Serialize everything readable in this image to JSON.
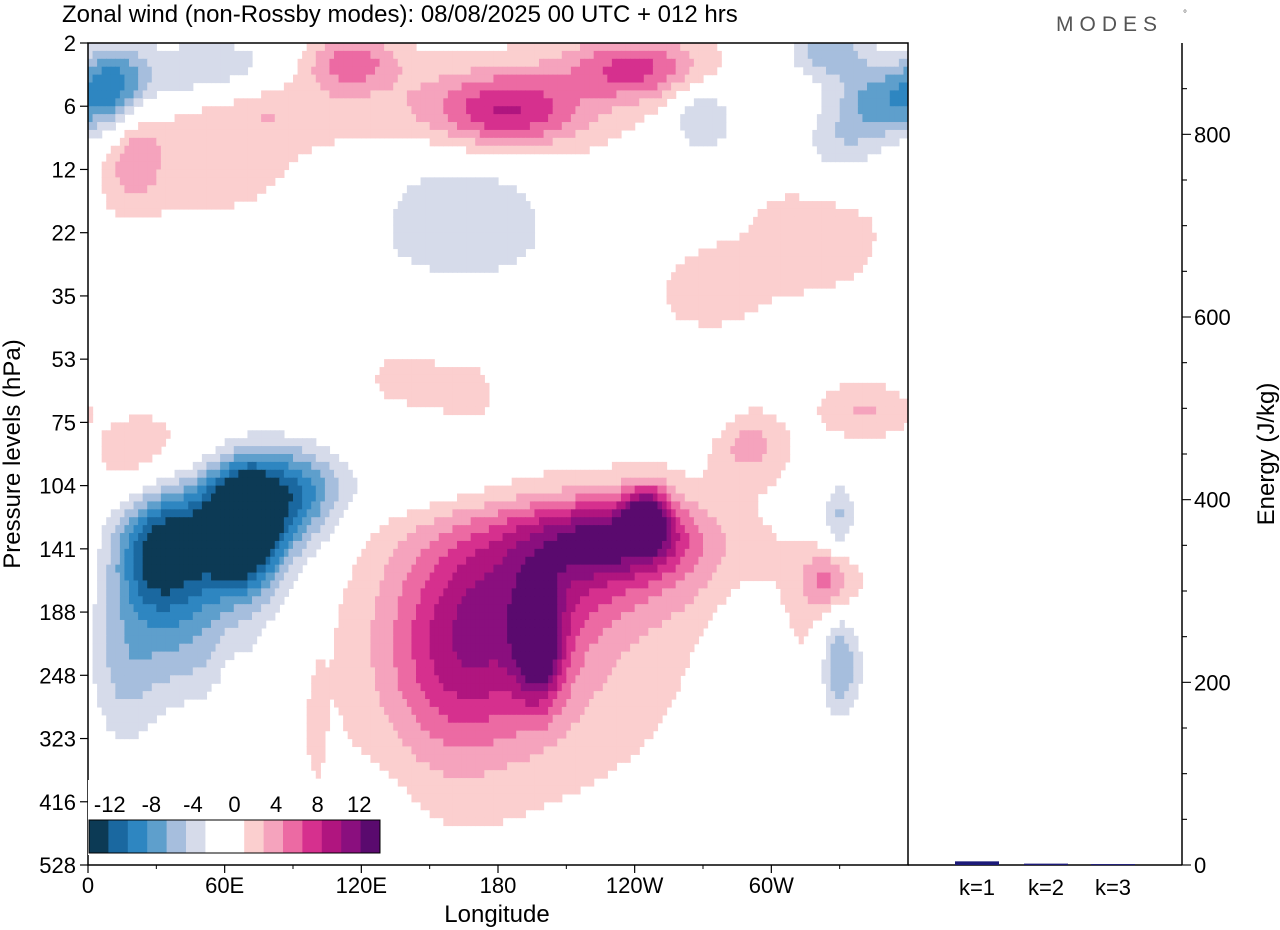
{
  "chart_data": [
    {
      "type": "heatmap",
      "title": "Zonal wind (non-Rossby modes):  08/08/2025  00 UTC  + 012 hrs",
      "brand": "MODES",
      "brand_mark": "°",
      "xlabel": "Longitude",
      "ylabel": "Pressure levels (hPa)",
      "x_ticks": [
        {
          "lon": 0,
          "label": "0"
        },
        {
          "lon": 60,
          "label": "60E"
        },
        {
          "lon": 120,
          "label": "120E"
        },
        {
          "lon": 180,
          "label": "180"
        },
        {
          "lon": 240,
          "label": "120W"
        },
        {
          "lon": 300,
          "label": "60W"
        }
      ],
      "xlim": [
        0,
        360
      ],
      "y_levels": [
        "2",
        "6",
        "12",
        "22",
        "35",
        "53",
        "75",
        "104",
        "141",
        "188",
        "248",
        "323",
        "416",
        "528"
      ],
      "colorbar": {
        "labels": [
          "-12",
          "-8",
          "-4",
          "0",
          "4",
          "8",
          "12"
        ],
        "label_values": [
          -12,
          -8,
          -4,
          0,
          4,
          8,
          12
        ],
        "bounds": [
          -14,
          14
        ],
        "colors": [
          "#0c3a55",
          "#1a68a0",
          "#2e86c1",
          "#5e9fcc",
          "#a6bedd",
          "#d6dbea",
          "#ffffff",
          "#ffffff",
          "#fbcfcf",
          "#f5a3bd",
          "#ec6aa3",
          "#d6308e",
          "#b0157f",
          "#8a0f7e",
          "#5a0a6e"
        ]
      },
      "features": [
        {
          "lon": 68,
          "lev": 7.6,
          "value": -13,
          "rx": 15,
          "ry": 0.9
        },
        {
          "lon": 55,
          "lev": 7.7,
          "value": -10,
          "rx": 35,
          "ry": 1.2
        },
        {
          "lon": 30,
          "lev": 8.1,
          "value": -8,
          "rx": 18,
          "ry": 1.0
        },
        {
          "lon": 90,
          "lev": 7.1,
          "value": -7,
          "rx": 22,
          "ry": 0.8
        },
        {
          "lon": 40,
          "lev": 9.5,
          "value": -5,
          "rx": 35,
          "ry": 1.2
        },
        {
          "lon": 15,
          "lev": 10.2,
          "value": -3,
          "rx": 15,
          "ry": 1.5
        },
        {
          "lon": 150,
          "lev": 7.0,
          "value": -2,
          "rx": 70,
          "ry": 0.5
        },
        {
          "lon": 165,
          "lev": 2.5,
          "value": -4,
          "rx": 40,
          "ry": 0.9
        },
        {
          "lon": 165,
          "lev": 3.5,
          "value": -2,
          "rx": 90,
          "ry": 0.8
        },
        {
          "lon": 12,
          "lev": 0.7,
          "value": -7,
          "rx": 14,
          "ry": 0.7
        },
        {
          "lon": 55,
          "lev": 0.5,
          "value": -6,
          "rx": 40,
          "ry": 0.6
        },
        {
          "lon": 325,
          "lev": 0.1,
          "value": -6,
          "rx": 18,
          "ry": 0.5
        },
        {
          "lon": 350,
          "lev": 0.9,
          "value": -7,
          "rx": 20,
          "ry": 0.6
        },
        {
          "lon": 270,
          "lev": 1.2,
          "value": -5,
          "rx": 15,
          "ry": 0.6
        },
        {
          "lon": 330,
          "lev": 1.6,
          "value": -4,
          "rx": 20,
          "ry": 0.7
        },
        {
          "lon": 330,
          "lev": 9.8,
          "value": -8,
          "rx": 10,
          "ry": 0.9
        },
        {
          "lon": 330,
          "lev": 7.5,
          "value": -5,
          "rx": 8,
          "ry": 0.6
        },
        {
          "lon": 285,
          "lev": 10.8,
          "value": -3,
          "rx": 14,
          "ry": 2.0
        },
        {
          "lon": 130,
          "lev": 13.3,
          "value": -2,
          "rx": 15,
          "ry": 1.4
        },
        {
          "lon": 268,
          "lev": 5.8,
          "value": -2,
          "rx": 30,
          "ry": 0.5
        },
        {
          "lon": 18,
          "lev": 3.7,
          "value": -2,
          "rx": 10,
          "ry": 0.6
        },
        {
          "lon": 198,
          "lev": 9.5,
          "value": 10,
          "rx": 10,
          "ry": 0.9
        },
        {
          "lon": 245,
          "lev": 7.5,
          "value": 10,
          "rx": 10,
          "ry": 0.5
        },
        {
          "lon": 230,
          "lev": 7.8,
          "value": 8,
          "rx": 35,
          "ry": 0.6
        },
        {
          "lon": 180,
          "lev": 9.2,
          "value": 6,
          "rx": 40,
          "ry": 1.6
        },
        {
          "lon": 220,
          "lev": 8.2,
          "value": 5,
          "rx": 60,
          "ry": 1.0
        },
        {
          "lon": 160,
          "lev": 10.0,
          "value": 4,
          "rx": 30,
          "ry": 1.6
        },
        {
          "lon": 190,
          "lev": 9.5,
          "value": 2,
          "rx": 80,
          "ry": 2.4
        },
        {
          "lon": 40,
          "lev": 6.6,
          "value": 3,
          "rx": 30,
          "ry": 0.8
        },
        {
          "lon": 325,
          "lev": 8.5,
          "value": 5,
          "rx": 12,
          "ry": 0.5
        },
        {
          "lon": 325,
          "lev": 9.5,
          "value": 2,
          "rx": 15,
          "ry": 1.0
        },
        {
          "lon": 290,
          "lev": 6.3,
          "value": 4,
          "rx": 15,
          "ry": 0.6
        },
        {
          "lon": 340,
          "lev": 5.8,
          "value": 3,
          "rx": 18,
          "ry": 0.4
        },
        {
          "lon": 240,
          "lev": 0.4,
          "value": 7,
          "rx": 30,
          "ry": 0.5
        },
        {
          "lon": 185,
          "lev": 1.1,
          "value": 6,
          "rx": 30,
          "ry": 0.6
        },
        {
          "lon": 175,
          "lev": 1.0,
          "value": 3,
          "rx": 55,
          "ry": 0.7
        },
        {
          "lon": 115,
          "lev": 0.3,
          "value": 6,
          "rx": 20,
          "ry": 0.4
        },
        {
          "lon": 75,
          "lev": 0.9,
          "value": 4,
          "rx": 40,
          "ry": 0.6
        },
        {
          "lon": 20,
          "lev": 1.8,
          "value": 4,
          "rx": 12,
          "ry": 0.8
        },
        {
          "lon": 55,
          "lev": 1.9,
          "value": 2,
          "rx": 35,
          "ry": 0.9
        },
        {
          "lon": 270,
          "lev": 3.8,
          "value": 2,
          "rx": 30,
          "ry": 0.8
        },
        {
          "lon": 320,
          "lev": 3.0,
          "value": 2,
          "rx": 30,
          "ry": 1.0
        },
        {
          "lon": 140,
          "lev": 5.3,
          "value": 2,
          "rx": 15,
          "ry": 0.4
        },
        {
          "lon": 165,
          "lev": 5.5,
          "value": 2,
          "rx": 12,
          "ry": 0.4
        },
        {
          "lon": 20,
          "lev": 6.8,
          "value": 2,
          "rx": 16,
          "ry": 0.7
        },
        {
          "lon": 62,
          "lev": 10.5,
          "value": 1,
          "rx": 6,
          "ry": 1.8
        },
        {
          "lon": 100,
          "lev": 10.8,
          "value": 1,
          "rx": 5,
          "ry": 1.2
        }
      ],
      "energy_panel": {
        "ylabel": "Energy (J/kg)",
        "ylim": [
          0,
          900
        ],
        "yticks": [
          0,
          200,
          400,
          600,
          800
        ],
        "bars": [
          {
            "label": "k=1",
            "value": 4
          },
          {
            "label": "k=2",
            "value": 1.5
          },
          {
            "label": "k=3",
            "value": 1
          }
        ],
        "bar_color": "#1c1a78"
      }
    }
  ]
}
